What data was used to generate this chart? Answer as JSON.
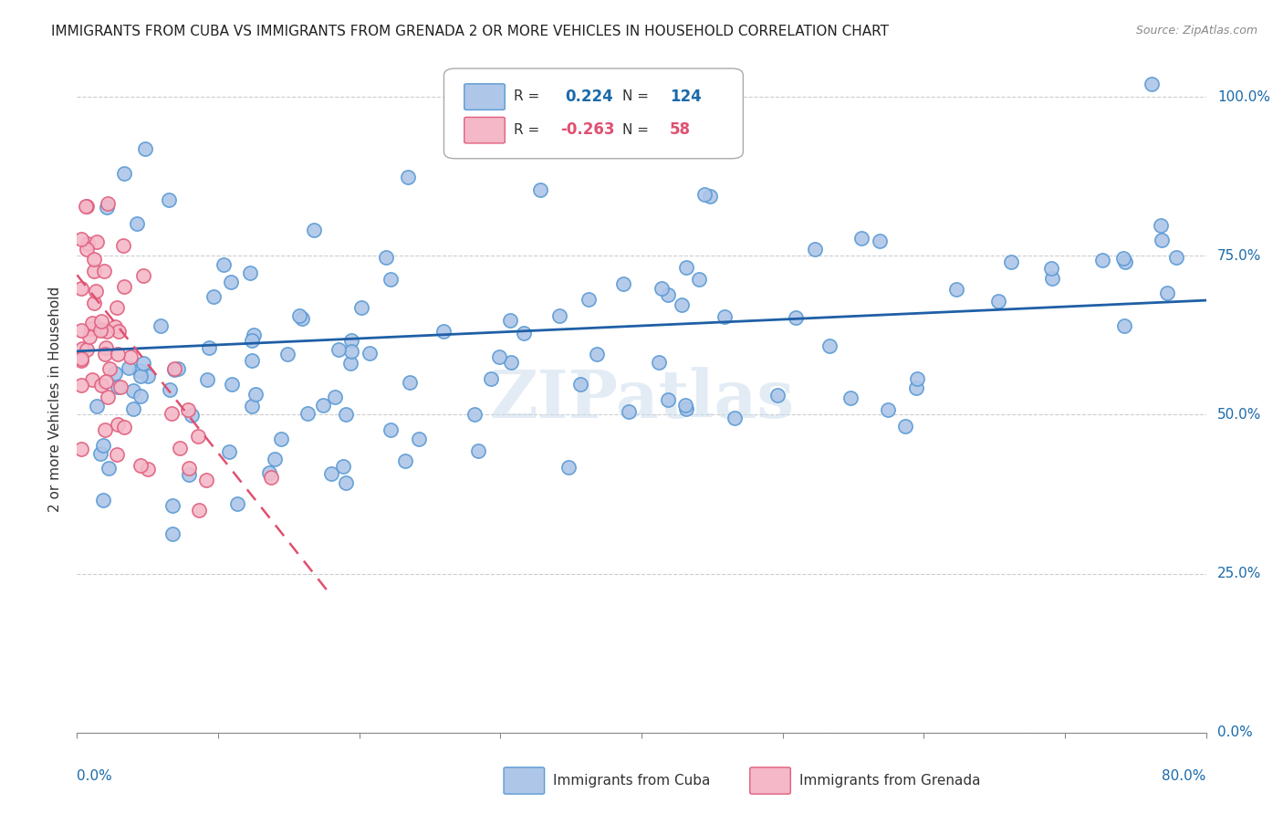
{
  "title": "IMMIGRANTS FROM CUBA VS IMMIGRANTS FROM GRENADA 2 OR MORE VEHICLES IN HOUSEHOLD CORRELATION CHART",
  "source": "Source: ZipAtlas.com",
  "ylabel": "2 or more Vehicles in Household",
  "yticks": [
    "0.0%",
    "25.0%",
    "50.0%",
    "75.0%",
    "100.0%"
  ],
  "ytick_vals": [
    0.0,
    0.25,
    0.5,
    0.75,
    1.0
  ],
  "xmin": 0.0,
  "xmax": 0.8,
  "ymin": 0.0,
  "ymax": 1.05,
  "cuba_R": 0.224,
  "cuba_N": 124,
  "grenada_R": -0.263,
  "grenada_N": 58,
  "cuba_color": "#aec6e8",
  "cuba_edge": "#5b9bd5",
  "grenada_color": "#f4b8c8",
  "grenada_edge": "#e0607e",
  "trend_cuba_color": "#1f5fa6",
  "trend_grenada_color": "#e05070",
  "watermark": "ZIPatlas"
}
